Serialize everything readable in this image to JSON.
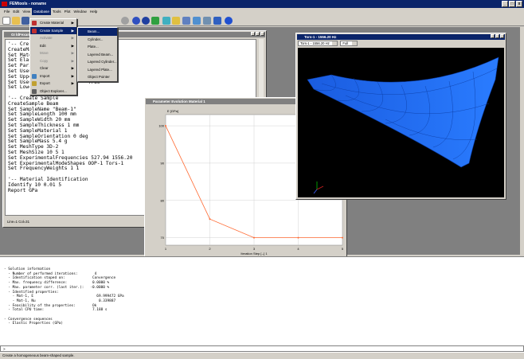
{
  "app": {
    "title": "FEMtools - noname"
  },
  "menubar": [
    "File",
    "Edit",
    "View",
    "Database",
    "Tools",
    "Plot",
    "Window",
    "Help"
  ],
  "menubar_active": "Database",
  "database_menu": [
    {
      "label": "Create Material",
      "arrow": "▶",
      "disabled": false
    },
    {
      "label": "Create Sample",
      "arrow": "▶",
      "disabled": false,
      "highlighted": true
    },
    {
      "label": "Activate",
      "arrow": "▶",
      "disabled": true
    },
    {
      "label": "Edit",
      "arrow": "▶",
      "disabled": false
    },
    {
      "label": "Move",
      "arrow": "▶",
      "disabled": true
    },
    {
      "label": "Copy",
      "arrow": "▶",
      "disabled": true
    },
    {
      "label": "Clear",
      "arrow": "▶",
      "disabled": false
    },
    {
      "label": "Import",
      "arrow": "▶",
      "disabled": false
    },
    {
      "label": "Export",
      "arrow": "▶",
      "disabled": false
    },
    {
      "label": "Object Explorer...",
      "arrow": "",
      "disabled": false
    }
  ],
  "create_sample_menu": [
    "Beam...",
    "Cylinder...",
    "Plate...",
    "Layered Beam...",
    "Layered Cylinder...",
    "Layered Plate...",
    "Object Pointer"
  ],
  "editor": {
    "title": "GI ldFexample",
    "lines": [
      "'-- Cre",
      "CreateMa",
      "Set Mate",
      "Set Elas",
      "Set Pari",
      "Set Useu                   True",
      "Set Uppe",
      "Set Useu                   True",
      "Set LowerBounds -25 -25",
      "",
      "'-- Create Sample",
      "CreateSample Beam",
      "Set SampleName \"Beam-1\"",
      "Set SampleLength 100 mm",
      "Set SampleWidth 20 mm",
      "Set SampleThickness 1 mm",
      "Set SampleMaterial 1",
      "Set SampleOrientation 0 deg",
      "Set SampleMass 5.4 g",
      "Set MeshType 3D-2",
      "Set MeshSize 10 5 1",
      "Set ExperimentalFrequencies 527.94 1556.20",
      "Set ExperimentalModeShapes OOP-1 Tors-1",
      "Set FrequencyWeights 1 1",
      "",
      "'-- Material Identification",
      "Identify 10 0.01 5",
      "Report GPa"
    ],
    "status": "Line=1    Col=31"
  },
  "plot": {
    "title": "Parameter Evolution Material 1"
  },
  "chart_data": {
    "type": "line",
    "title": "",
    "ylabel": "E [GPa]",
    "xlabel": "Iteration Step [--] 1",
    "x": [
      1,
      2,
      3,
      4,
      5
    ],
    "y": [
      100,
      75,
      70,
      70,
      70
    ],
    "xlim": [
      1,
      5
    ],
    "ylim": [
      68,
      103
    ],
    "xticks": [
      "1",
      "2",
      "3",
      "4",
      "5"
    ],
    "yticks": [
      "70",
      "80",
      "90",
      "100"
    ],
    "ytick_values": [
      70,
      80,
      90,
      100
    ],
    "line_color": "#ff6a33",
    "grid": true
  },
  "shape": {
    "title": "Tors-1 - 1556.20 Hz",
    "mode_combo": "Tors-1 - 1556.20 Hz",
    "view_combo": "Full",
    "mesh_color": "#1a6cff"
  },
  "output": {
    "lines": [
      "- Solution information",
      "  - Number of performed iterations:        4",
      "  - Identification stoped on:             Convergence",
      "  - Max. frequency difference:            0.0000 %",
      "  - Max. parameter corr. (last iter.):   -0.0000 %",
      "  - Identified properties:",
      "    - Mat-1, E                              69.999472 GPa",
      "    - Mat-1, Nu                              0.339887",
      "  - Feasibility of the properties:        Ok",
      "  - Total CPU time:                       7.188 s",
      "",
      "- Convergence sequences",
      "  - Elastic Properties (GPa)"
    ]
  },
  "cmdline": {
    "prompt": ">"
  },
  "statusbar": {
    "text": "Create a homogeneous beam-shaped sample."
  }
}
